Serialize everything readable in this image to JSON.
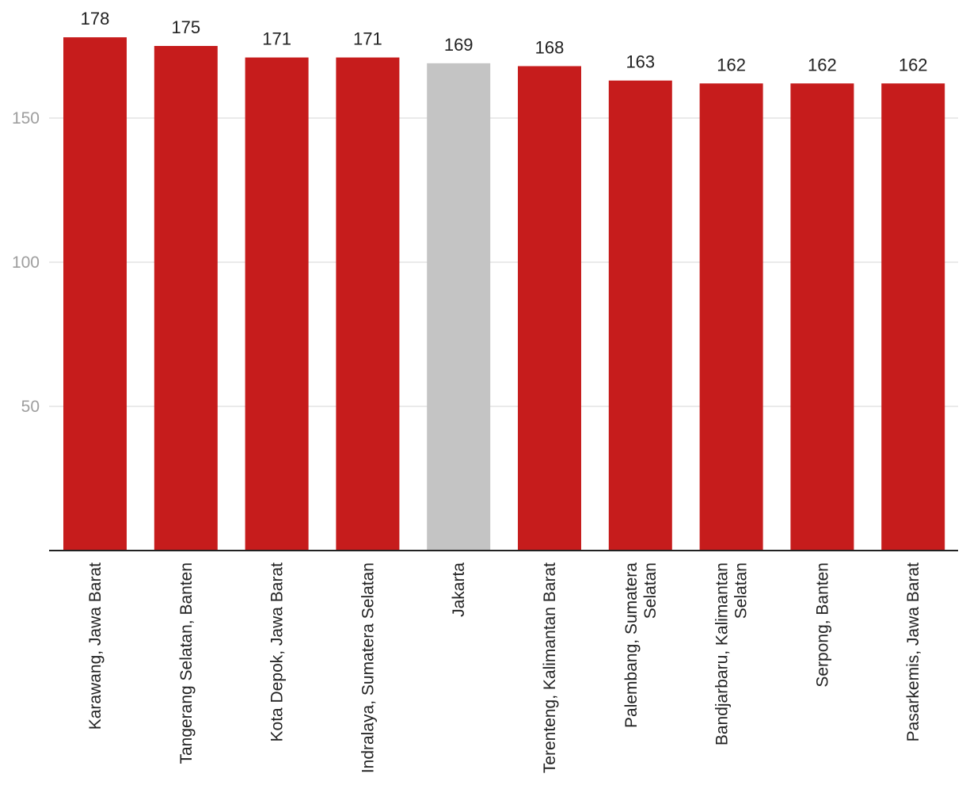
{
  "chart_data": {
    "type": "bar",
    "title": "",
    "xlabel": "",
    "ylabel": "",
    "ylim": [
      0,
      180
    ],
    "yticks": [
      50,
      100,
      150
    ],
    "grid": true,
    "categories": [
      "Karawang, Jawa Barat",
      "Tangerang Selatan, Banten",
      "Kota Depok, Jawa Barat",
      "Indralaya, Sumatera Selatan",
      "Jakarta",
      "Terenteng, Kalimantan Barat",
      "Palembang, Sumatera Selatan",
      "Bandjarbaru, Kalimantan Selatan",
      "Serpong, Banten",
      "Pasarkemis, Jawa Barat"
    ],
    "category_lines": [
      [
        "Karawang, Jawa Barat"
      ],
      [
        "Tangerang Selatan, Banten"
      ],
      [
        "Kota Depok, Jawa Barat"
      ],
      [
        "Indralaya, Sumatera Selatan"
      ],
      [
        "Jakarta"
      ],
      [
        "Terenteng, Kalimantan Barat"
      ],
      [
        "Palembang, Sumatera",
        "Selatan"
      ],
      [
        "Bandjarbaru, Kalimantan",
        "Selatan"
      ],
      [
        "Serpong, Banten"
      ],
      [
        "Pasarkemis, Jawa Barat"
      ]
    ],
    "values": [
      178,
      175,
      171,
      171,
      169,
      168,
      163,
      162,
      162,
      162
    ],
    "highlight_index": 4,
    "colors": {
      "bar": "#c61c1c",
      "highlight": "#c4c4c4",
      "grid": "#e3e3e3",
      "axis": "#222222"
    }
  }
}
